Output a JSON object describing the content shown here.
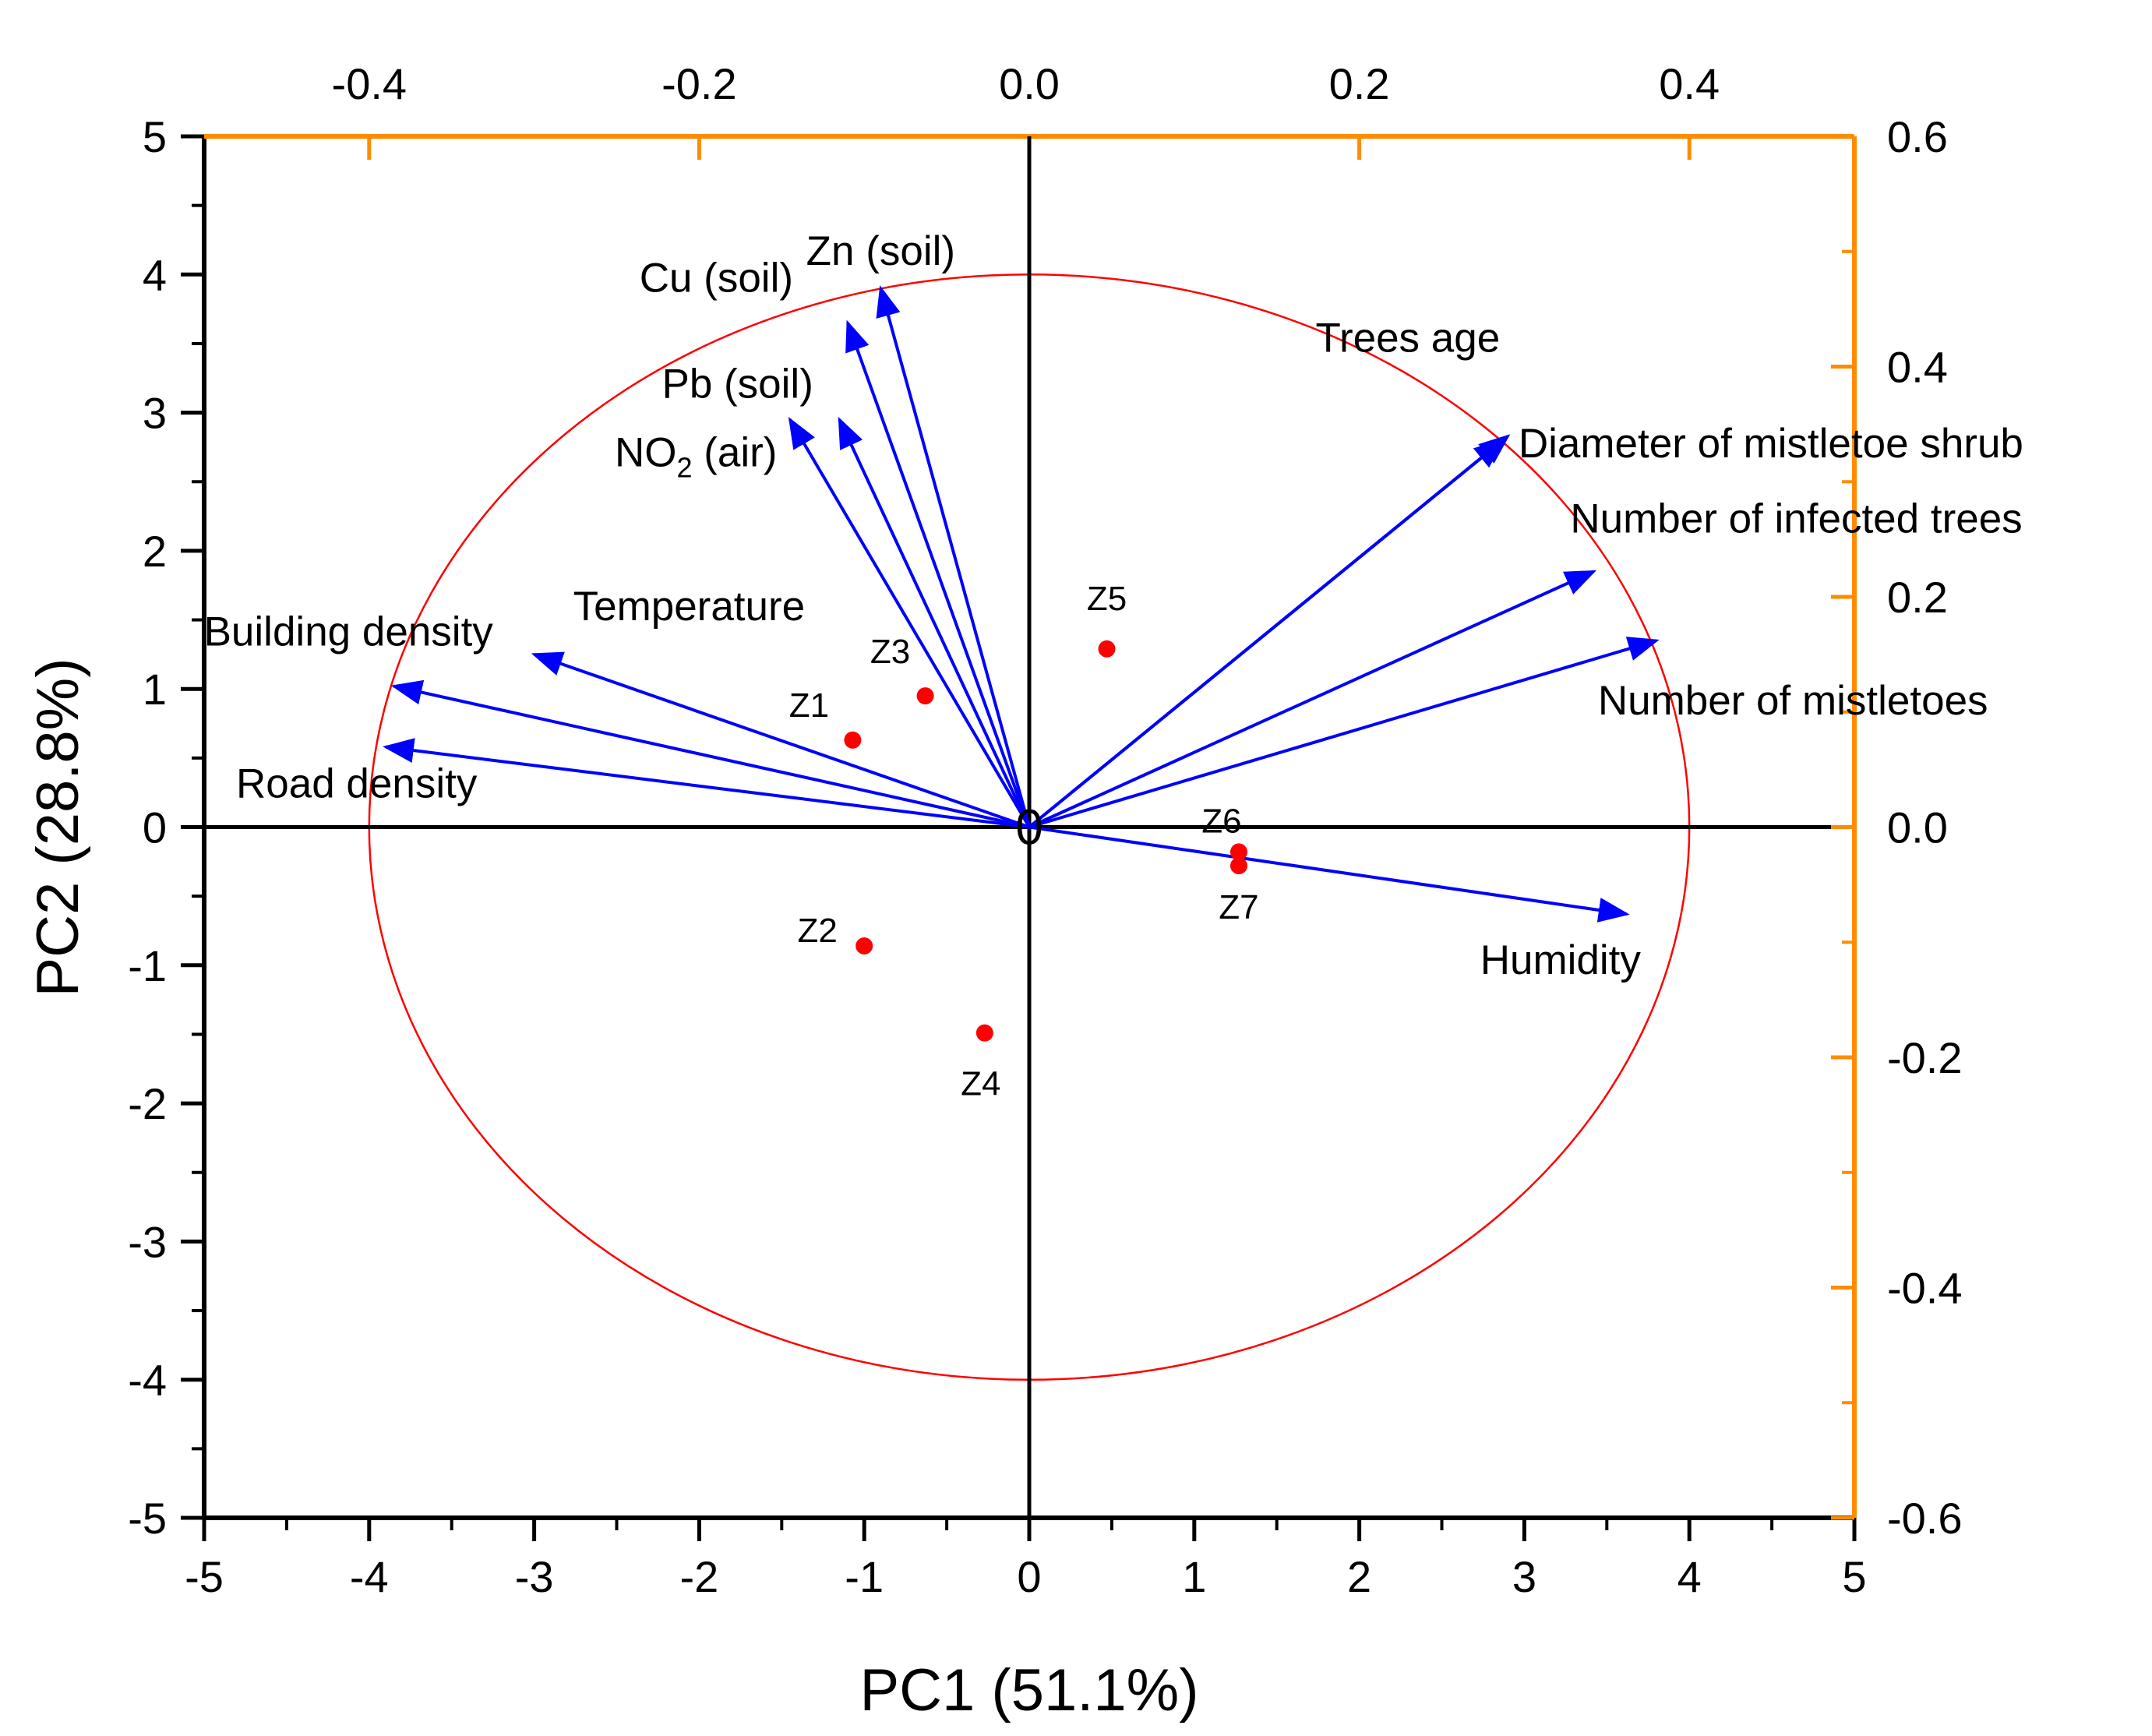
{
  "chart_data": {
    "type": "biplot",
    "title": "",
    "xlabel": "PC1 (51.1%)",
    "ylabel": "PC2 (28.8%)",
    "xlim": [
      -5,
      5
    ],
    "ylim": [
      -5,
      5
    ],
    "x_ticks": [
      "-5",
      "-4",
      "-3",
      "-2",
      "-1",
      "0",
      "1",
      "2",
      "3",
      "4",
      "5"
    ],
    "y_ticks": [
      "-5",
      "-4",
      "-3",
      "-2",
      "-1",
      "0",
      "1",
      "2",
      "3",
      "4",
      "5"
    ],
    "top_axis": {
      "range": [
        -0.5,
        0.5
      ],
      "ticks": [
        -0.4,
        -0.2,
        0.0,
        0.2,
        0.4
      ],
      "tick_labels": [
        "-0.4",
        "-0.2",
        "0.0",
        "0.2",
        "0.4"
      ]
    },
    "right_axis": {
      "range": [
        -0.6,
        0.6
      ],
      "ticks": [
        -0.6,
        -0.4,
        -0.2,
        0.0,
        0.2,
        0.4,
        0.6
      ],
      "tick_labels": [
        "-0.6",
        "-0.4",
        "-0.2",
        "0.0",
        "0.2",
        "0.4",
        "0.6"
      ]
    },
    "circle_radius": 4,
    "origin_label": "0",
    "loadings": [
      {
        "name": "Zn (soil)",
        "x": -0.9,
        "y": 3.9
      },
      {
        "name": "Cu (soil)",
        "x": -1.1,
        "y": 3.65
      },
      {
        "name": "Pb (soil)",
        "x": -1.45,
        "y": 2.95
      },
      {
        "name": "NO2 (air)",
        "x": -1.15,
        "y": 2.95
      },
      {
        "name": "Temperature",
        "x": -3.0,
        "y": 1.25
      },
      {
        "name": "Building density",
        "x": -3.85,
        "y": 1.02
      },
      {
        "name": "Road density",
        "x": -3.9,
        "y": 0.58
      },
      {
        "name": "Trees age",
        "x": 2.9,
        "y": 2.83
      },
      {
        "name": "Diameter of mistletoe shrub",
        "x": 2.87,
        "y": 2.8
      },
      {
        "name": "Number of infected trees",
        "x": 3.42,
        "y": 1.85
      },
      {
        "name": "Number of mistletoes",
        "x": 3.8,
        "y": 1.35
      },
      {
        "name": "Humidity",
        "x": 3.62,
        "y": -0.63
      }
    ],
    "scores": [
      {
        "name": "Z1",
        "x": -1.07,
        "y": 0.63
      },
      {
        "name": "Z2",
        "x": -1.0,
        "y": -0.86
      },
      {
        "name": "Z3",
        "x": -0.63,
        "y": 0.95
      },
      {
        "name": "Z4",
        "x": -0.27,
        "y": -1.49
      },
      {
        "name": "Z5",
        "x": 0.47,
        "y": 1.29
      },
      {
        "name": "Z6",
        "x": 1.27,
        "y": -0.18
      },
      {
        "name": "Z7",
        "x": 1.27,
        "y": -0.28
      }
    ],
    "colors": {
      "arrows": "#0000ff",
      "points": "#ff0000",
      "circle": "#ff0000",
      "secondary_axes": "#ff8c00",
      "primary_axes": "#000000"
    }
  }
}
